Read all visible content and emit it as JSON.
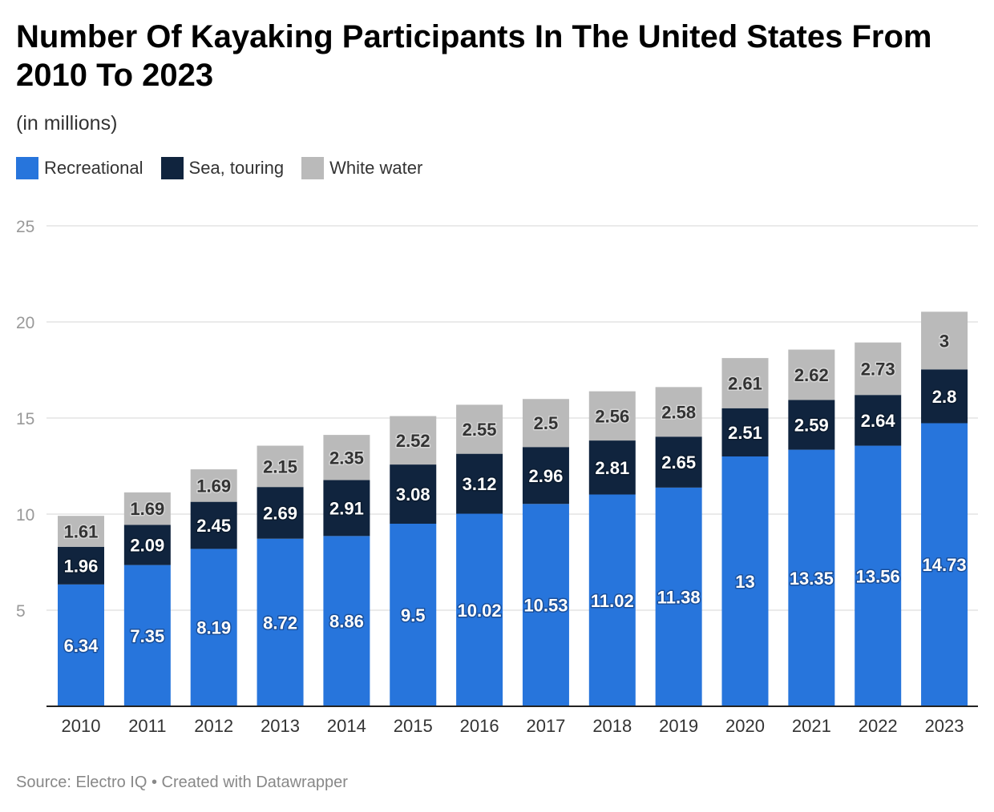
{
  "chart_data": {
    "type": "bar",
    "stacked": true,
    "title": "Number Of Kayaking Participants In The United States From 2010 To 2023",
    "subtitle": "(in millions)",
    "categories": [
      "2010",
      "2011",
      "2012",
      "2013",
      "2014",
      "2015",
      "2016",
      "2017",
      "2018",
      "2019",
      "2020",
      "2021",
      "2022",
      "2023"
    ],
    "series": [
      {
        "name": "Recreational",
        "color": "#2775dc",
        "values": [
          6.34,
          7.35,
          8.19,
          8.72,
          8.86,
          9.5,
          10.02,
          10.53,
          11.02,
          11.38,
          13,
          13.35,
          13.56,
          14.73
        ]
      },
      {
        "name": "Sea, touring",
        "color": "#10243e",
        "values": [
          1.96,
          2.09,
          2.45,
          2.69,
          2.91,
          3.08,
          3.12,
          2.96,
          2.81,
          2.65,
          2.51,
          2.59,
          2.64,
          2.8
        ]
      },
      {
        "name": "White water",
        "color": "#bababa",
        "values": [
          1.61,
          1.69,
          1.69,
          2.15,
          2.35,
          2.52,
          2.55,
          2.5,
          2.56,
          2.58,
          2.61,
          2.62,
          2.73,
          3
        ]
      }
    ],
    "yticks": [
      5,
      10,
      15,
      20,
      25
    ],
    "ylim": [
      0,
      25
    ],
    "grid": true,
    "legend": "top-left"
  },
  "footer": "Source: Electro IQ • Created with Datawrapper"
}
